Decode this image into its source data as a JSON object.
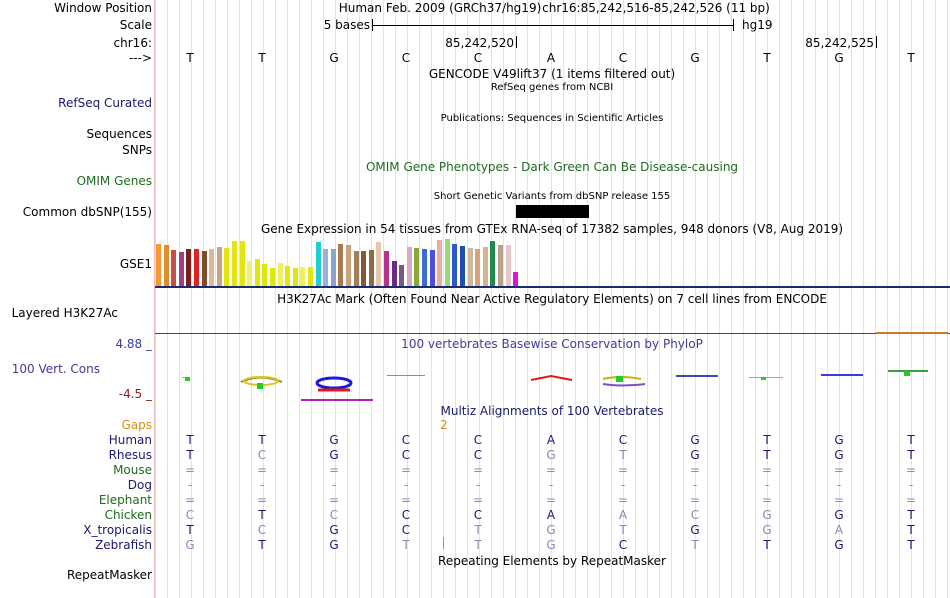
{
  "window_position": {
    "label": "Window Position",
    "assembly": "Human Feb. 2009 (GRCh37/hg19)",
    "range": "chr16:85,242,516-85,242,526 (11 bp)"
  },
  "scale": {
    "label": "Scale",
    "bar_label": "5 bases",
    "db": "hg19"
  },
  "chrom": {
    "label": "chr16:",
    "pos1": "85,242,520",
    "pos2": "85,242,525"
  },
  "strand": {
    "label": "--->"
  },
  "bases": [
    "T",
    "T",
    "G",
    "C",
    "C",
    "A",
    "C",
    "G",
    "T",
    "G",
    "T"
  ],
  "tracks": {
    "gencode": "GENCODE V49lift37 (1 items filtered out)",
    "refseq_label": "RefSeq Curated",
    "refseq_title": "RefSeq genes from NCBI",
    "pubs_title": "Publications: Sequences in Scientific Articles",
    "sequences_label": "Sequences",
    "snps_label": "SNPs",
    "omim_title": "OMIM Gene Phenotypes - Dark Green Can Be Disease-causing",
    "omim_label": "OMIM Genes",
    "dbsnp_title": "Short Genetic Variants from dbSNP release 155",
    "dbsnp_label": "Common dbSNP(155)",
    "gtex_title": "Gene Expression in 54 tissues from GTEx RNA-seq of 17382 samples, 948 donors (V8, Aug 2019)",
    "gse_label": "GSE1",
    "h3k_title": "H3K27Ac Mark (Often Found Near Active Regulatory Elements) on 7 cell lines from ENCODE",
    "h3k_label": "Layered H3K27Ac",
    "phylo_title": "100 vertebrates Basewise Conservation by PhyloP",
    "phylo_label": "100 Vert. Cons",
    "phylo_max": "4.88 _",
    "phylo_min": "-4.5 _",
    "multiz_title": "Multiz Alignments of 100 Vertebrates",
    "gaps_label": "Gaps",
    "gaps_value": "2",
    "rmsk_title": "Repeating Elements by RepeatMasker",
    "rmsk_label": "RepeatMasker"
  },
  "gtex_values": [
    {
      "color": "#f39a35",
      "v": 0.86
    },
    {
      "color": "#e38a2a",
      "v": 0.84
    },
    {
      "color": "#c44d4d",
      "v": 0.74
    },
    {
      "color": "#a33f7a",
      "v": 0.7
    },
    {
      "color": "#7a1f1f",
      "v": 0.76
    },
    {
      "color": "#e62020",
      "v": 0.76
    },
    {
      "color": "#7d4c2a",
      "v": 0.72
    },
    {
      "color": "#d9b99a",
      "v": 0.76
    },
    {
      "color": "#c7a38a",
      "v": 0.8
    },
    {
      "color": "#e3e60d",
      "v": 0.78
    },
    {
      "color": "#e3e60d",
      "v": 0.92
    },
    {
      "color": "#e3e60d",
      "v": 0.92
    },
    {
      "color": "#f2f26b",
      "v": 0.52
    },
    {
      "color": "#e3e60d",
      "v": 0.56
    },
    {
      "color": "#e3e60d",
      "v": 0.46
    },
    {
      "color": "#e3e60d",
      "v": 0.38
    },
    {
      "color": "#f0ee62",
      "v": 0.48
    },
    {
      "color": "#e3e60d",
      "v": 0.42
    },
    {
      "color": "#e3e60d",
      "v": 0.38
    },
    {
      "color": "#f0ee62",
      "v": 0.4
    },
    {
      "color": "#e3e60d",
      "v": 0.4
    },
    {
      "color": "#1fcfcf",
      "v": 0.9
    },
    {
      "color": "#9ab0d9",
      "v": 0.76
    },
    {
      "color": "#8aa5c9",
      "v": 0.76
    },
    {
      "color": "#a87a4f",
      "v": 0.86
    },
    {
      "color": "#c9a27a",
      "v": 0.84
    },
    {
      "color": "#a37f58",
      "v": 0.72
    },
    {
      "color": "#7d5c3a",
      "v": 0.72
    },
    {
      "color": "#8a6b4a",
      "v": 0.74
    },
    {
      "color": "#e8c7b0",
      "v": 0.9
    },
    {
      "color": "#b3368c",
      "v": 0.72
    },
    {
      "color": "#6a2b82",
      "v": 0.52
    },
    {
      "color": "#7a5a7a",
      "v": 0.44
    },
    {
      "color": "#d9a8c7",
      "v": 0.8
    },
    {
      "color": "#8aa836",
      "v": 0.78
    },
    {
      "color": "#3a6bd9",
      "v": 0.76
    },
    {
      "color": "#4d4de6",
      "v": 0.74
    },
    {
      "color": "#f0a8a8",
      "v": 0.94
    },
    {
      "color": "#9ad97a",
      "v": 0.96
    },
    {
      "color": "#2a5ac9",
      "v": 0.86
    },
    {
      "color": "#1f4fb3",
      "v": 0.82
    },
    {
      "color": "#cfb89a",
      "v": 0.78
    },
    {
      "color": "#d9a07a",
      "v": 0.76
    },
    {
      "color": "#d4b48c",
      "v": 0.8
    },
    {
      "color": "#1f8a4f",
      "v": 0.92
    },
    {
      "color": "#b8a38a",
      "v": 0.84
    },
    {
      "color": "#e6c7c7",
      "v": 0.84
    },
    {
      "color": "#e010e0",
      "v": 0.3
    }
  ],
  "species": [
    {
      "name": "Human",
      "color": "#1a1a6e",
      "seq": [
        "T",
        "T",
        "G",
        "C",
        "C",
        "A",
        "C",
        "G",
        "T",
        "G",
        "T"
      ],
      "seqcolor": [
        "#1a1a6e",
        "#1a1a6e",
        "#1a1a6e",
        "#1a1a6e",
        "#1a1a6e",
        "#1a1a6e",
        "#1a1a6e",
        "#1a1a6e",
        "#1a1a6e",
        "#1a1a6e",
        "#1a1a6e"
      ]
    },
    {
      "name": "Rhesus",
      "color": "#1a1a6e",
      "seq": [
        "T",
        "C",
        "G",
        "C",
        "C",
        "G",
        "T",
        "G",
        "T",
        "G",
        "T"
      ],
      "seqcolor": [
        "#1a1a6e",
        "#8a8ab5",
        "#1a1a6e",
        "#1a1a6e",
        "#1a1a6e",
        "#8a8ab5",
        "#8a8ab5",
        "#1a1a6e",
        "#1a1a6e",
        "#1a1a6e",
        "#1a1a6e"
      ]
    },
    {
      "name": "Mouse",
      "color": "#1f6b1f",
      "seq": [
        "=",
        "=",
        "=",
        "=",
        "=",
        "=",
        "=",
        "=",
        "=",
        "=",
        "="
      ],
      "seqcolor": [
        "#8a8ab5",
        "#8a8ab5",
        "#8a8ab5",
        "#8a8ab5",
        "#8a8ab5",
        "#8a8ab5",
        "#8a8ab5",
        "#8a8ab5",
        "#8a8ab5",
        "#8a8ab5",
        "#8a8ab5"
      ]
    },
    {
      "name": "Dog",
      "color": "#1a1a6e",
      "seq": [
        "-",
        "-",
        "-",
        "-",
        "-",
        "-",
        "-",
        "-",
        "-",
        "-",
        "-"
      ],
      "seqcolor": [
        "#8a8ab5",
        "#8a8ab5",
        "#8a8ab5",
        "#8a8ab5",
        "#8a8ab5",
        "#8a8ab5",
        "#8a8ab5",
        "#8a8ab5",
        "#8a8ab5",
        "#8a8ab5",
        "#8a8ab5"
      ]
    },
    {
      "name": "Elephant",
      "color": "#1f6b1f",
      "seq": [
        "=",
        "=",
        "=",
        "=",
        "=",
        "=",
        "=",
        "=",
        "=",
        "=",
        "="
      ],
      "seqcolor": [
        "#8a8ab5",
        "#8a8ab5",
        "#8a8ab5",
        "#8a8ab5",
        "#8a8ab5",
        "#8a8ab5",
        "#8a8ab5",
        "#8a8ab5",
        "#8a8ab5",
        "#8a8ab5",
        "#8a8ab5"
      ]
    },
    {
      "name": "Chicken",
      "color": "#1f6b1f",
      "seq": [
        "C",
        "T",
        "C",
        "C",
        "C",
        "A",
        "A",
        "C",
        "G",
        "G",
        "T"
      ],
      "seqcolor": [
        "#8a8ab5",
        "#1a1a6e",
        "#8a8ab5",
        "#1a1a6e",
        "#1a1a6e",
        "#1a1a6e",
        "#8a8ab5",
        "#8a8ab5",
        "#8a8ab5",
        "#1a1a6e",
        "#1a1a6e"
      ]
    },
    {
      "name": "X_tropicalis",
      "color": "#1a1a6e",
      "seq": [
        "T",
        "C",
        "G",
        "C",
        "T",
        "G",
        "T",
        "G",
        "G",
        "A",
        "T"
      ],
      "seqcolor": [
        "#1a1a6e",
        "#8a8ab5",
        "#1a1a6e",
        "#1a1a6e",
        "#8a8ab5",
        "#8a8ab5",
        "#8a8ab5",
        "#1a1a6e",
        "#8a8ab5",
        "#8a8ab5",
        "#1a1a6e"
      ]
    },
    {
      "name": "Zebrafish",
      "color": "#1a1a6e",
      "seq": [
        "G",
        "T",
        "G",
        "T",
        "T",
        "G",
        "C",
        "T",
        "T",
        "G",
        "T"
      ],
      "seqcolor": [
        "#8a8ab5",
        "#1a1a6e",
        "#1a1a6e",
        "#8a8ab5",
        "#8a8ab5",
        "#8a8ab5",
        "#1a1a6e",
        "#8a8ab5",
        "#1a1a6e",
        "#1a1a6e",
        "#1a1a6e"
      ]
    }
  ],
  "colors": {
    "navy": "#1a1a6e",
    "dark_green": "#1f6b1f",
    "phylo_label": "#3d3d99",
    "phylo_min": "#8b1a1a",
    "gaps": "#d88a18"
  }
}
